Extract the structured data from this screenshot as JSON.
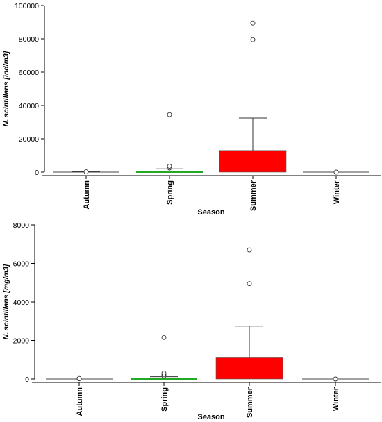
{
  "chart_data": [
    {
      "type": "box",
      "xlabel": "Season",
      "ylabel": "N. scintillans [ind/m3]",
      "ylim": [
        0,
        100000
      ],
      "yticks": [
        0,
        20000,
        40000,
        60000,
        80000,
        100000
      ],
      "categories": [
        "Autumn",
        "Spring",
        "Summer",
        "Winter"
      ],
      "colors": [
        "#000000",
        "#22aa22",
        "#ff0000",
        "#000000"
      ],
      "boxes": [
        {
          "min": 0,
          "q1": 0,
          "median": 0,
          "q3": 100,
          "max": 200,
          "outliers": [
            200
          ]
        },
        {
          "min": 0,
          "q1": 200,
          "median": 500,
          "q3": 1000,
          "max": 2000,
          "outliers": [
            2500,
            3500,
            34500
          ]
        },
        {
          "min": 0,
          "q1": 0,
          "median": 0,
          "q3": 13000,
          "max": 32500,
          "outliers": [
            79500,
            89500
          ]
        },
        {
          "min": 0,
          "q1": 0,
          "median": 0,
          "q3": 0,
          "max": 0,
          "outliers": [
            0
          ]
        }
      ]
    },
    {
      "type": "box",
      "xlabel": "Season",
      "ylabel": "N. scintillans [mg/m3]",
      "ylim": [
        0,
        8000
      ],
      "yticks": [
        0,
        2000,
        4000,
        6000,
        8000
      ],
      "categories": [
        "Autumn",
        "Spring",
        "Summer",
        "Winter"
      ],
      "colors": [
        "#000000",
        "#22aa22",
        "#ff0000",
        "#000000"
      ],
      "boxes": [
        {
          "min": 0,
          "q1": 0,
          "median": 0,
          "q3": 0,
          "max": 0,
          "outliers": [
            10,
            30
          ]
        },
        {
          "min": 0,
          "q1": 0,
          "median": 20,
          "q3": 50,
          "max": 120,
          "outliers": [
            150,
            220,
            300,
            2150
          ]
        },
        {
          "min": 0,
          "q1": 0,
          "median": 0,
          "q3": 1100,
          "max": 2750,
          "outliers": [
            4950,
            6700
          ]
        },
        {
          "min": 0,
          "q1": 0,
          "median": 0,
          "q3": 0,
          "max": 0,
          "outliers": [
            0
          ]
        }
      ]
    }
  ]
}
